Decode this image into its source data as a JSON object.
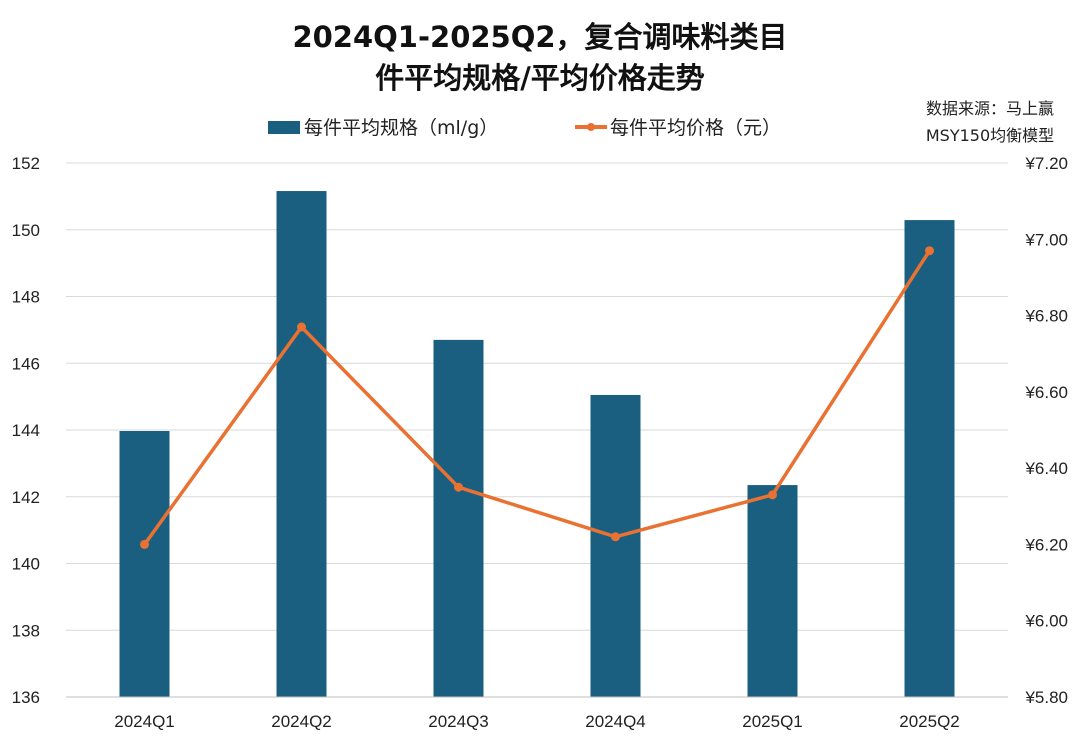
{
  "chart_data": {
    "type": "bar+line",
    "title": [
      "2024Q1-2025Q2，复合调味料类目",
      "件平均规格/平均价格走势"
    ],
    "source": [
      "数据来源：马上赢",
      "MSY150均衡模型"
    ],
    "categories": [
      "2024Q1",
      "2024Q2",
      "2024Q3",
      "2024Q4",
      "2025Q1",
      "2025Q2"
    ],
    "series": [
      {
        "name": "每件平均规格（ml/g）",
        "type": "bar",
        "axis": "left",
        "color": "#1a5f80",
        "values": [
          143.97,
          151.16,
          146.7,
          145.05,
          142.35,
          150.29
        ]
      },
      {
        "name": "每件平均价格（元）",
        "type": "line",
        "axis": "right",
        "color": "#e97132",
        "values": [
          6.2,
          6.77,
          6.35,
          6.22,
          6.33,
          6.97
        ]
      }
    ],
    "left_axis": {
      "ylim": [
        136,
        152
      ],
      "ticks": [
        "136",
        "138",
        "140",
        "142",
        "144",
        "146",
        "148",
        "150",
        "152"
      ]
    },
    "right_axis": {
      "ylim": [
        5.8,
        7.2
      ],
      "ticks": [
        "¥5.80",
        "¥6.00",
        "¥6.20",
        "¥6.40",
        "¥6.60",
        "¥6.80",
        "¥7.00",
        "¥7.20"
      ]
    },
    "grid": true,
    "legend_position": "top"
  }
}
